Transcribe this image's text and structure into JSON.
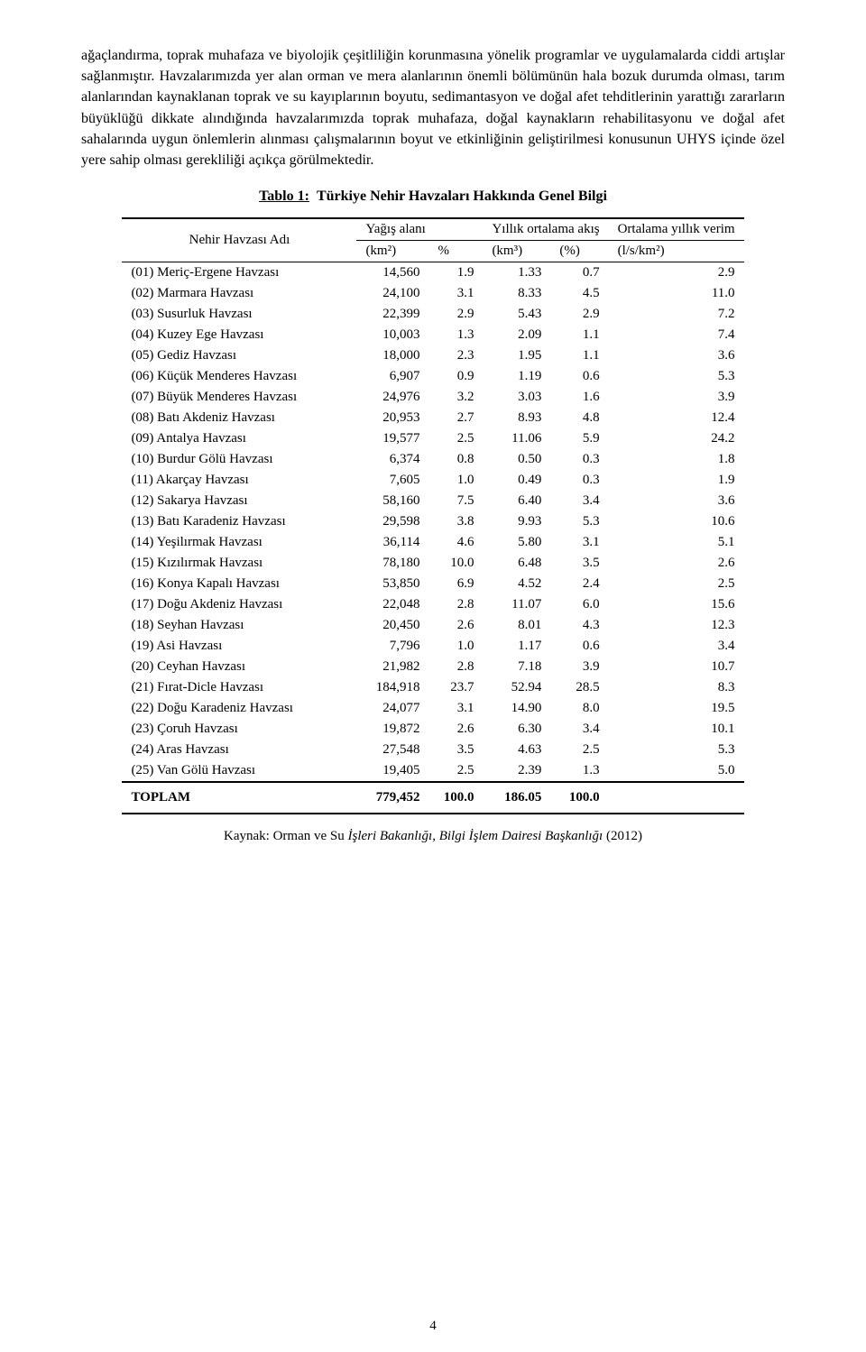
{
  "paragraph": "ağaçlandırma, toprak muhafaza ve biyolojik çeşitliliğin korunmasına yönelik programlar ve uygulamalarda ciddi artışlar sağlanmıştır. Havzalarımızda yer alan orman ve mera alanlarının önemli bölümünün hala bozuk durumda olması, tarım alanlarından kaynaklanan toprak ve su kayıplarının boyutu, sedimantasyon ve doğal afet tehditlerinin yarattığı zararların büyüklüğü dikkate alındığında havzalarımızda toprak muhafaza, doğal kaynakların rehabilitasyonu ve doğal afet sahalarında uygun önlemlerin alınması çalışmalarının boyut ve etkinliğinin geliştirilmesi konusunun UHYS içinde özel yere sahip olması gerekliliği açıkça görülmektedir.",
  "table": {
    "title_label": "Tablo 1:",
    "title_text": "Türkiye Nehir Havzaları Hakkında Genel Bilgi",
    "header": {
      "name": "Nehir Havzası Adı",
      "group_yagis": "Yağış alanı",
      "group_akis": "Yıllık ortalama akış",
      "group_verim": "Ortalama yıllık verim",
      "unit_km2": "(km²)",
      "unit_pct": "%",
      "unit_km3": "(km³)",
      "unit_pct2": "(%)",
      "unit_lskm2": "(l/s/km²)"
    },
    "rows": [
      {
        "name": "(01)  Meriç-Ergene Havzası",
        "km2": "14,560",
        "pct": "1.9",
        "km3": "1.33",
        "pct2": "0.7",
        "yield": "2.9"
      },
      {
        "name": "(02)  Marmara Havzası",
        "km2": "24,100",
        "pct": "3.1",
        "km3": "8.33",
        "pct2": "4.5",
        "yield": "11.0"
      },
      {
        "name": "(03)  Susurluk Havzası",
        "km2": "22,399",
        "pct": "2.9",
        "km3": "5.43",
        "pct2": "2.9",
        "yield": "7.2"
      },
      {
        "name": "(04)  Kuzey Ege Havzası",
        "km2": "10,003",
        "pct": "1.3",
        "km3": "2.09",
        "pct2": "1.1",
        "yield": "7.4"
      },
      {
        "name": "(05)  Gediz Havzası",
        "km2": "18,000",
        "pct": "2.3",
        "km3": "1.95",
        "pct2": "1.1",
        "yield": "3.6"
      },
      {
        "name": "(06)  Küçük Menderes Havzası",
        "km2": "6,907",
        "pct": "0.9",
        "km3": "1.19",
        "pct2": "0.6",
        "yield": "5.3"
      },
      {
        "name": "(07)  Büyük Menderes Havzası",
        "km2": "24,976",
        "pct": "3.2",
        "km3": "3.03",
        "pct2": "1.6",
        "yield": "3.9"
      },
      {
        "name": "(08)  Batı Akdeniz Havzası",
        "km2": "20,953",
        "pct": "2.7",
        "km3": "8.93",
        "pct2": "4.8",
        "yield": "12.4"
      },
      {
        "name": "(09)  Antalya Havzası",
        "km2": "19,577",
        "pct": "2.5",
        "km3": "11.06",
        "pct2": "5.9",
        "yield": "24.2"
      },
      {
        "name": "(10)  Burdur Gölü Havzası",
        "km2": "6,374",
        "pct": "0.8",
        "km3": "0.50",
        "pct2": "0.3",
        "yield": "1.8"
      },
      {
        "name": "(11)  Akarçay Havzası",
        "km2": "7,605",
        "pct": "1.0",
        "km3": "0.49",
        "pct2": "0.3",
        "yield": "1.9"
      },
      {
        "name": "(12)  Sakarya Havzası",
        "km2": "58,160",
        "pct": "7.5",
        "km3": "6.40",
        "pct2": "3.4",
        "yield": "3.6"
      },
      {
        "name": "(13)  Batı Karadeniz Havzası",
        "km2": "29,598",
        "pct": "3.8",
        "km3": "9.93",
        "pct2": "5.3",
        "yield": "10.6"
      },
      {
        "name": "(14)  Yeşilırmak Havzası",
        "km2": "36,114",
        "pct": "4.6",
        "km3": "5.80",
        "pct2": "3.1",
        "yield": "5.1"
      },
      {
        "name": "(15)  Kızılırmak Havzası",
        "km2": "78,180",
        "pct": "10.0",
        "km3": "6.48",
        "pct2": "3.5",
        "yield": "2.6"
      },
      {
        "name": "(16)  Konya Kapalı Havzası",
        "km2": "53,850",
        "pct": "6.9",
        "km3": "4.52",
        "pct2": "2.4",
        "yield": "2.5"
      },
      {
        "name": "(17)  Doğu Akdeniz Havzası",
        "km2": "22,048",
        "pct": "2.8",
        "km3": "11.07",
        "pct2": "6.0",
        "yield": "15.6"
      },
      {
        "name": "(18)  Seyhan Havzası",
        "km2": "20,450",
        "pct": "2.6",
        "km3": "8.01",
        "pct2": "4.3",
        "yield": "12.3"
      },
      {
        "name": "(19)  Asi Havzası",
        "km2": "7,796",
        "pct": "1.0",
        "km3": "1.17",
        "pct2": "0.6",
        "yield": "3.4"
      },
      {
        "name": "(20)  Ceyhan Havzası",
        "km2": "21,982",
        "pct": "2.8",
        "km3": "7.18",
        "pct2": "3.9",
        "yield": "10.7"
      },
      {
        "name": "(21)  Fırat-Dicle Havzası",
        "km2": "184,918",
        "pct": "23.7",
        "km3": "52.94",
        "pct2": "28.5",
        "yield": "8.3"
      },
      {
        "name": "(22)  Doğu Karadeniz Havzası",
        "km2": "24,077",
        "pct": "3.1",
        "km3": "14.90",
        "pct2": "8.0",
        "yield": "19.5"
      },
      {
        "name": "(23)  Çoruh Havzası",
        "km2": "19,872",
        "pct": "2.6",
        "km3": "6.30",
        "pct2": "3.4",
        "yield": "10.1"
      },
      {
        "name": "(24)  Aras Havzası",
        "km2": "27,548",
        "pct": "3.5",
        "km3": "4.63",
        "pct2": "2.5",
        "yield": "5.3"
      },
      {
        "name": "(25)  Van Gölü Havzası",
        "km2": "19,405",
        "pct": "2.5",
        "km3": "2.39",
        "pct2": "1.3",
        "yield": "5.0"
      }
    ],
    "total": {
      "label": "TOPLAM",
      "km2": "779,452",
      "pct": "100.0",
      "km3": "186.05",
      "pct2": "100.0",
      "yield": ""
    }
  },
  "source": {
    "prefix": "Kaynak: Orman ve Su ",
    "italic": "İşleri Bakanlığı, Bilgi İşlem Dairesi Başkanlığı",
    "suffix": " (2012)"
  },
  "page_number": "4"
}
